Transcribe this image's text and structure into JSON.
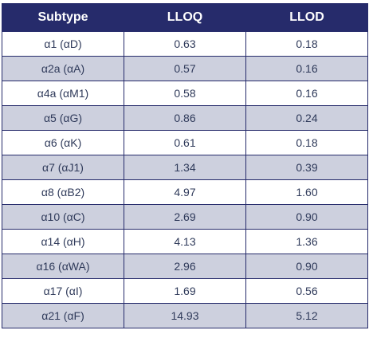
{
  "table": {
    "headers": [
      "Subtype",
      "LLOQ",
      "LLOD"
    ],
    "rows": [
      [
        "α1 (αD)",
        "0.63",
        "0.18"
      ],
      [
        "α2a (αA)",
        "0.57",
        "0.16"
      ],
      [
        "α4a (αM1)",
        "0.58",
        "0.16"
      ],
      [
        "α5 (αG)",
        "0.86",
        "0.24"
      ],
      [
        "α6 (αK)",
        "0.61",
        "0.18"
      ],
      [
        "α7 (αJ1)",
        "1.34",
        "0.39"
      ],
      [
        "α8 (αB2)",
        "4.97",
        "1.60"
      ],
      [
        "α10 (αC)",
        "2.69",
        "0.90"
      ],
      [
        "α14 (αH)",
        "4.13",
        "1.36"
      ],
      [
        "α16 (αWA)",
        "2.96",
        "0.90"
      ],
      [
        "α17 (αI)",
        "1.69",
        "0.56"
      ],
      [
        "α21 (αF)",
        "14.93",
        "5.12"
      ]
    ],
    "colors": {
      "header_bg": "#262b6b",
      "header_text": "#ffffff",
      "stripe_bg": "#cdd0de",
      "cell_text": "#2f3a5a",
      "border": "#262b6b"
    }
  }
}
